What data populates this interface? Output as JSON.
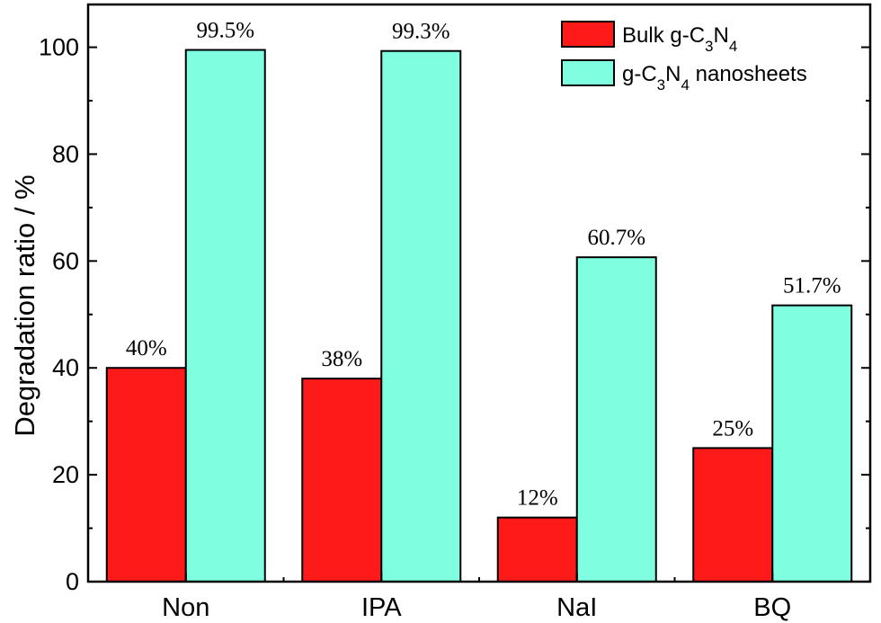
{
  "chart_data": {
    "type": "bar",
    "categories": [
      "Non",
      "IPA",
      "NaI",
      "BQ"
    ],
    "series": [
      {
        "name": "Bulk g-C3N4",
        "legend": {
          "base": "Bulk g-C",
          "sub1": "3",
          "mid": "N",
          "sub2": "4"
        },
        "color": "#ff1a1a",
        "values": [
          40,
          38,
          12,
          25
        ],
        "labels": [
          "40%",
          "38%",
          "12%",
          "25%"
        ]
      },
      {
        "name": "g-C3N4 nanosheets",
        "legend": {
          "base": "g-C",
          "sub1": "3",
          "mid": "N",
          "sub2": "4",
          "tail": " nanosheets"
        },
        "color": "#7fffe0",
        "values": [
          99.5,
          99.3,
          60.7,
          51.7
        ],
        "labels": [
          "99.5%",
          "99.3%",
          "60.7%",
          "51.7%"
        ]
      }
    ],
    "ylabel": "Degradation ratio / %",
    "xlabel": "",
    "ylim": [
      0,
      108
    ],
    "yticks": [
      0,
      20,
      40,
      60,
      80,
      100
    ],
    "grid": false,
    "legend_position": "top-right"
  }
}
